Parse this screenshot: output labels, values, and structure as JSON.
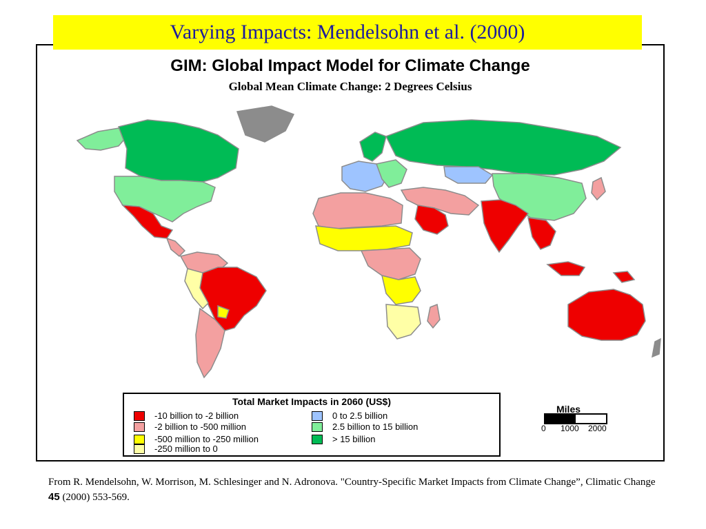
{
  "slide": {
    "title": "Varying Impacts:  Mendelsohn et al. (2000)"
  },
  "map": {
    "heading": "GIM: Global Impact Model for Climate Change",
    "subheading": "Global Mean Climate Change: 2 Degrees Celsius",
    "colors": {
      "neg_10b_to_neg_2b": "#ee0000",
      "neg_2b_to_neg_500m": "#f3a0a0",
      "neg_500m_to_neg_250m": "#ffff00",
      "neg_250m_to_0": "#ffffa6",
      "pos_0_to_2_5b": "#9ec4ff",
      "pos_2_5b_to_15b": "#80ee9a",
      "pos_over_15b": "#00bb55",
      "no_data": "#8c8c8c"
    }
  },
  "legend": {
    "title": "Total Market Impacts in 2060 (US$)",
    "items": [
      {
        "label": "-10 billion to -2 billion",
        "color": "#ee0000"
      },
      {
        "label": "-2 billion to -500 million",
        "color": "#f3a0a0"
      },
      {
        "label": "-500 million to -250 million",
        "color": "#ffff00"
      },
      {
        "label": "-250 million to 0",
        "color": "#ffffa6"
      },
      {
        "label": "0 to 2.5 billion",
        "color": "#9ec4ff"
      },
      {
        "label": "2.5 billion to 15 billion",
        "color": "#80ee9a"
      },
      {
        "label": "> 15 billion",
        "color": "#00bb55"
      }
    ]
  },
  "scale": {
    "title": "Miles",
    "ticks": [
      "0",
      "1000",
      "2000"
    ]
  },
  "citation": {
    "text_before": "From R. Mendelsohn, W. Morrison, M. Schlesinger and N. Adronova. \"Country-Specific Market Impacts from Climate Change”, Climatic Change ",
    "volume": "45",
    "text_after": " (2000) 553-569."
  }
}
